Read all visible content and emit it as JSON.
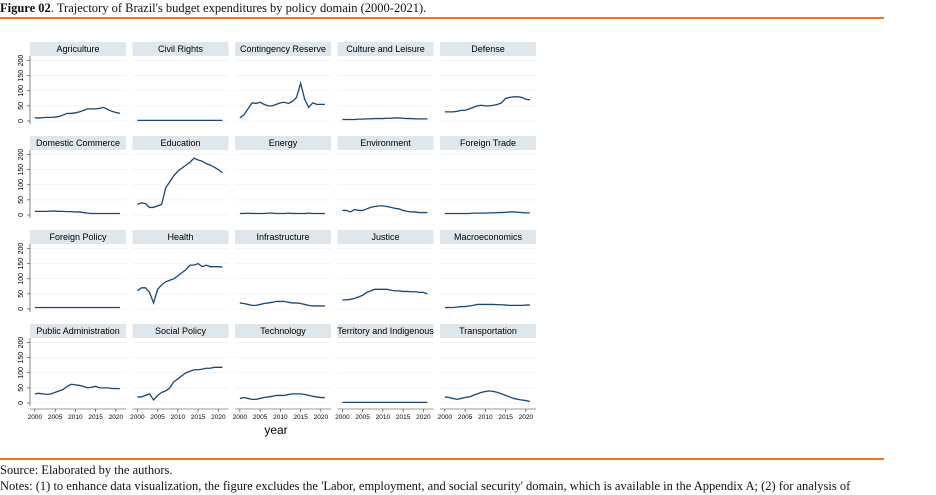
{
  "figure": {
    "label": "Figure 02",
    "caption": ". Trajectory of Brazil's budget expenditures by policy domain (2000-2021)."
  },
  "source": "Source: Elaborated by the authors.",
  "notes": "Notes: (1) to enhance data visualization, the figure excludes the 'Labor, employment, and social security' domain, which is available in the Appendix A; (2) for analysis of",
  "chart_data": {
    "type": "line",
    "xlabel": "year",
    "color": "#1a476f",
    "grid": true,
    "x": [
      2000,
      2001,
      2002,
      2003,
      2004,
      2005,
      2006,
      2007,
      2008,
      2009,
      2010,
      2011,
      2012,
      2013,
      2014,
      2015,
      2016,
      2017,
      2018,
      2019,
      2020,
      2021
    ],
    "xlim": [
      1998.8,
      2022.5
    ],
    "xticks": [
      2000,
      2005,
      2010,
      2015,
      2020
    ],
    "ylim": [
      -10,
      215
    ],
    "yticks": [
      0,
      50,
      100,
      150,
      200
    ],
    "panels": [
      {
        "title": "Agriculture",
        "values": [
          10,
          10,
          11,
          12,
          12,
          13,
          15,
          20,
          25,
          25,
          27,
          30,
          35,
          40,
          40,
          40,
          42,
          45,
          38,
          32,
          28,
          25
        ]
      },
      {
        "title": "Civil Rights",
        "values": [
          2,
          2,
          2,
          2,
          2,
          2,
          2,
          2,
          2,
          2,
          2,
          2,
          2,
          2,
          2,
          2,
          2,
          2,
          2,
          2,
          2,
          2
        ]
      },
      {
        "title": "Contingency Reserve",
        "values": [
          10,
          20,
          40,
          60,
          58,
          62,
          55,
          50,
          50,
          55,
          60,
          62,
          58,
          65,
          78,
          125,
          72,
          45,
          60,
          55,
          55,
          55
        ]
      },
      {
        "title": "Culture and Leisure",
        "values": [
          5,
          5,
          5,
          5,
          6,
          6,
          7,
          7,
          8,
          8,
          8,
          9,
          9,
          10,
          10,
          9,
          8,
          8,
          7,
          7,
          7,
          7
        ]
      },
      {
        "title": "Defense",
        "values": [
          30,
          30,
          30,
          32,
          35,
          35,
          40,
          45,
          50,
          52,
          50,
          50,
          52,
          55,
          60,
          75,
          78,
          80,
          80,
          78,
          72,
          70
        ]
      },
      {
        "title": "Domestic Commerce",
        "values": [
          12,
          12,
          12,
          12,
          13,
          13,
          12,
          12,
          11,
          11,
          10,
          10,
          8,
          6,
          5,
          5,
          5,
          5,
          5,
          5,
          5,
          5
        ]
      },
      {
        "title": "Education",
        "values": [
          35,
          40,
          38,
          25,
          25,
          30,
          35,
          90,
          110,
          130,
          145,
          155,
          165,
          175,
          188,
          182,
          178,
          170,
          165,
          158,
          150,
          140
        ]
      },
      {
        "title": "Energy",
        "values": [
          5,
          5,
          6,
          5,
          5,
          5,
          5,
          6,
          6,
          5,
          5,
          5,
          6,
          5,
          5,
          5,
          5,
          6,
          5,
          5,
          5,
          5
        ]
      },
      {
        "title": "Environment",
        "values": [
          15,
          15,
          10,
          18,
          15,
          15,
          20,
          25,
          28,
          30,
          30,
          28,
          25,
          22,
          20,
          15,
          12,
          10,
          10,
          8,
          8,
          8
        ]
      },
      {
        "title": "Foreign Trade",
        "values": [
          5,
          5,
          5,
          5,
          5,
          5,
          5,
          6,
          6,
          6,
          6,
          7,
          7,
          8,
          8,
          9,
          10,
          10,
          9,
          8,
          7,
          7
        ]
      },
      {
        "title": "Foreign Policy",
        "values": [
          5,
          5,
          5,
          5,
          5,
          5,
          5,
          5,
          5,
          5,
          5,
          5,
          5,
          5,
          5,
          5,
          5,
          5,
          5,
          5,
          5,
          5
        ]
      },
      {
        "title": "Health",
        "values": [
          60,
          70,
          70,
          55,
          20,
          65,
          80,
          90,
          95,
          100,
          110,
          120,
          130,
          145,
          145,
          150,
          140,
          145,
          140,
          140,
          140,
          138
        ]
      },
      {
        "title": "Infrastructure",
        "values": [
          20,
          18,
          15,
          12,
          12,
          15,
          18,
          20,
          22,
          25,
          25,
          25,
          22,
          20,
          20,
          18,
          15,
          12,
          10,
          10,
          10,
          10
        ]
      },
      {
        "title": "Justice",
        "values": [
          30,
          30,
          32,
          35,
          40,
          45,
          55,
          60,
          65,
          65,
          65,
          65,
          62,
          60,
          60,
          58,
          58,
          57,
          57,
          55,
          55,
          50
        ]
      },
      {
        "title": "Macroeconomics",
        "values": [
          5,
          5,
          5,
          6,
          8,
          8,
          10,
          12,
          15,
          15,
          15,
          15,
          15,
          14,
          14,
          13,
          12,
          12,
          12,
          12,
          13,
          13
        ]
      },
      {
        "title": "Public Administration",
        "values": [
          30,
          32,
          30,
          28,
          30,
          35,
          40,
          45,
          55,
          62,
          60,
          58,
          55,
          50,
          52,
          55,
          50,
          50,
          50,
          48,
          48,
          47
        ]
      },
      {
        "title": "Social Policy",
        "values": [
          20,
          20,
          25,
          30,
          10,
          25,
          35,
          40,
          50,
          70,
          80,
          90,
          100,
          105,
          110,
          110,
          112,
          115,
          115,
          118,
          118,
          118
        ]
      },
      {
        "title": "Technology",
        "values": [
          15,
          18,
          15,
          12,
          12,
          15,
          18,
          20,
          22,
          25,
          25,
          25,
          28,
          30,
          30,
          30,
          28,
          25,
          22,
          20,
          18,
          18
        ]
      },
      {
        "title": "Territory and Indigenous",
        "values": [
          2,
          2,
          2,
          2,
          2,
          2,
          2,
          2,
          2,
          2,
          2,
          2,
          2,
          2,
          2,
          2,
          2,
          2,
          2,
          2,
          2,
          2
        ]
      },
      {
        "title": "Transportation",
        "values": [
          20,
          18,
          15,
          12,
          15,
          18,
          20,
          25,
          30,
          35,
          38,
          40,
          38,
          35,
          30,
          25,
          20,
          15,
          12,
          10,
          8,
          5
        ]
      }
    ]
  }
}
